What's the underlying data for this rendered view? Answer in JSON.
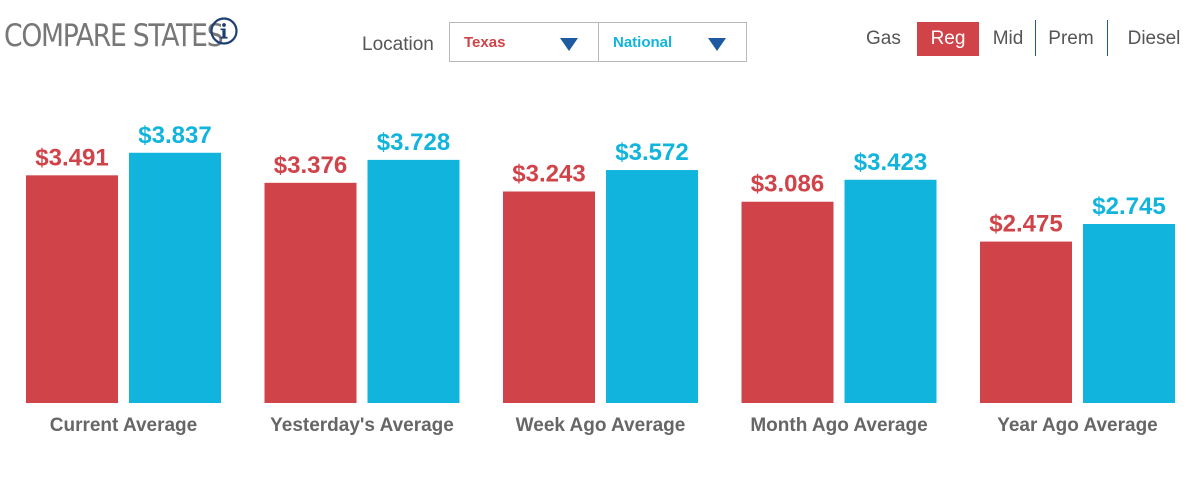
{
  "header": {
    "title": "COMPARE STATES",
    "location_label": "Location",
    "state_select": "Texas",
    "national_select": "National",
    "gas_label": "Gas",
    "grades": [
      "Reg",
      "Mid",
      "Prem",
      "Diesel"
    ],
    "active_grade": "Reg"
  },
  "colors": {
    "state": "#cf4349",
    "national": "#11b4dc",
    "accent_blue": "#1d5aa0"
  },
  "chart_data": {
    "type": "bar",
    "categories": [
      "Current Average",
      "Yesterday's Average",
      "Week Ago Average",
      "Month Ago Average",
      "Year Ago Average"
    ],
    "series": [
      {
        "values": [
          3.491,
          3.376,
          3.243,
          3.086,
          2.475
        ],
        "labels": [
          "$3.491",
          "$3.376",
          "$3.243",
          "$3.086",
          "$2.475"
        ]
      },
      {
        "values": [
          3.837,
          3.728,
          3.572,
          3.423,
          2.745
        ],
        "labels": [
          "$3.837",
          "$3.728",
          "$3.572",
          "$3.423",
          "$2.745"
        ]
      }
    ],
    "ylim": [
      0,
      4.6
    ],
    "grid": false,
    "legend": "none"
  }
}
